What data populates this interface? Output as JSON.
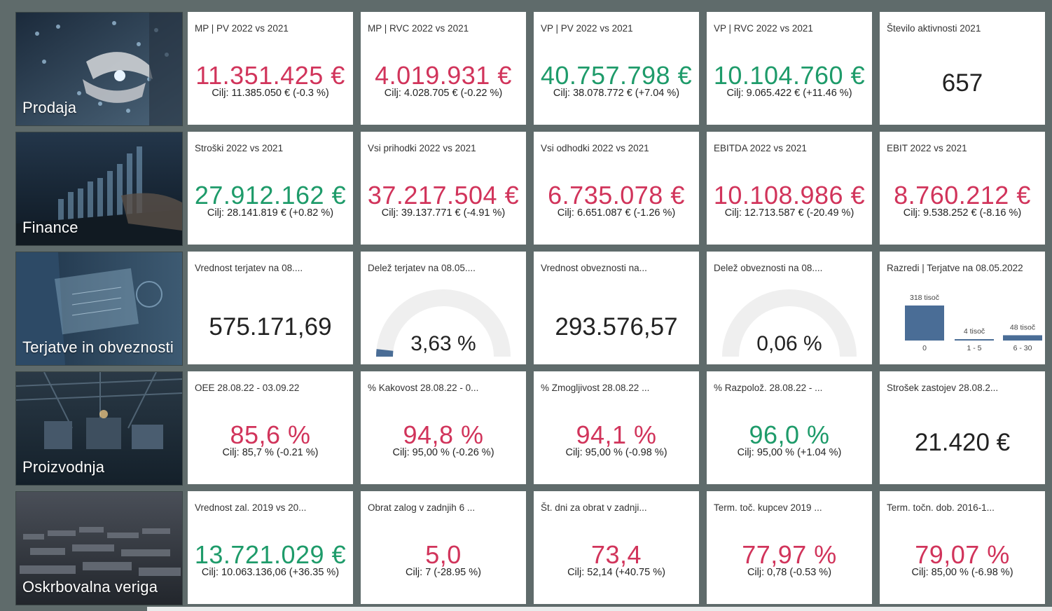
{
  "categories": [
    {
      "label": "Prodaja",
      "icon": "hands-network-icon"
    },
    {
      "label": "Finance",
      "icon": "bar-chart-laptop-icon"
    },
    {
      "label": "Terjatve in obveznosti",
      "icon": "tablet-data-icon"
    },
    {
      "label": "Proizvodnja",
      "icon": "factory-floor-icon"
    },
    {
      "label": "Oskrbovalna veriga",
      "icon": "container-port-icon"
    }
  ],
  "rows": [
    [
      {
        "title": "MP | PV 2022 vs 2021",
        "value": "11.351.425 €",
        "target": "Cilj: 11.385.050 € (-0.3 %)",
        "status": "red"
      },
      {
        "title": "MP | RVC 2022 vs 2021",
        "value": "4.019.931 €",
        "target": "Cilj: 4.028.705 € (-0.22 %)",
        "status": "red"
      },
      {
        "title": "VP | PV 2022 vs 2021",
        "value": "40.757.798 €",
        "target": "Cilj: 38.078.772 € (+7.04 %)",
        "status": "green"
      },
      {
        "title": "VP | RVC 2022 vs 2021",
        "value": "10.104.760 €",
        "target": "Cilj: 9.065.422 € (+11.46 %)",
        "status": "green"
      },
      {
        "title": "Število aktivnosti 2021",
        "value": "657"
      }
    ],
    [
      {
        "title": "Stroški 2022 vs 2021",
        "value": "27.912.162 €",
        "target": "Cilj: 28.141.819 € (+0.82 %)",
        "status": "green"
      },
      {
        "title": "Vsi prihodki 2022 vs 2021",
        "value": "37.217.504 €",
        "target": "Cilj: 39.137.771 € (-4.91 %)",
        "status": "red"
      },
      {
        "title": "Vsi odhodki 2022 vs 2021",
        "value": "6.735.078 €",
        "target": "Cilj: 6.651.087 € (-1.26 %)",
        "status": "red"
      },
      {
        "title": "EBITDA 2022 vs 2021",
        "value": "10.108.986 €",
        "target": "Cilj: 12.713.587 € (-20.49 %)",
        "status": "red"
      },
      {
        "title": "EBIT 2022 vs 2021",
        "value": "8.760.212 €",
        "target": "Cilj: 9.538.252 € (-8.16 %)",
        "status": "red"
      }
    ],
    [
      {
        "title": "Vrednost terjatev na 08....",
        "value": "575.171,69"
      },
      {
        "title": "Delež terjatev na 08.05....",
        "value": "3,63 %",
        "gauge": 0.0363
      },
      {
        "title": "Vrednost obveznosti na...",
        "value": "293.576,57"
      },
      {
        "title": "Delež obveznosti na 08....",
        "value": "0,06 %",
        "gauge": 0.0006
      },
      {
        "title": "Razredi | Terjatve na 08.05.2022"
      }
    ],
    [
      {
        "title": "OEE 28.08.22 - 03.09.22",
        "value": "85,6 %",
        "target": "Cilj: 85,7 % (-0.21 %)",
        "status": "red"
      },
      {
        "title": "% Kakovost 28.08.22 - 0...",
        "value": "94,8 %",
        "target": "Cilj: 95,00 % (-0.26 %)",
        "status": "red"
      },
      {
        "title": "% Zmogljivost 28.08.22 ...",
        "value": "94,1 %",
        "target": "Cilj: 95,00 % (-0.98 %)",
        "status": "red"
      },
      {
        "title": "% Razpolož. 28.08.22 - ...",
        "value": "96,0 %",
        "target": "Cilj: 95,00 % (+1.04 %)",
        "status": "green"
      },
      {
        "title": "Strošek zastojev 28.08.2...",
        "value": "21.420 €"
      }
    ],
    [
      {
        "title": "Vrednost zal. 2019 vs 20...",
        "value": "13.721.029 €",
        "target": "Cilj: 10.063.136,06 (+36.35 %)",
        "status": "green"
      },
      {
        "title": "Obrat zalog v zadnjih 6 ...",
        "value": "5,0",
        "target": "Cilj: 7 (-28.95 %)",
        "status": "red"
      },
      {
        "title": "Št. dni za obrat v zadnji...",
        "value": "73,4",
        "target": "Cilj: 52,14 (+40.75 %)",
        "status": "red"
      },
      {
        "title": "Term. toč. kupcev 2019 ...",
        "value": "77,97 %",
        "target": "Cilj: 0,78 (-0.53 %)",
        "status": "red"
      },
      {
        "title": "Term. točn. dob. 2016-1...",
        "value": "79,07 %",
        "target": "Cilj: 85,00 % (-6.98 %)",
        "status": "red"
      }
    ]
  ],
  "chart_data": {
    "type": "bar",
    "title": "Razredi | Terjatve na 08.05.2022",
    "categories": [
      "0",
      "1 - 5",
      "6 - 30"
    ],
    "values": [
      318,
      4,
      48
    ],
    "data_labels": [
      "318 tisoč",
      "4 tisoč",
      "48 tisoč"
    ],
    "unit": "tisoč",
    "color": "#4a6d96"
  },
  "colors": {
    "red": "#d1345b",
    "green": "#1e9b6a",
    "bar": "#4a6d96",
    "gauge_track": "#efefef"
  }
}
